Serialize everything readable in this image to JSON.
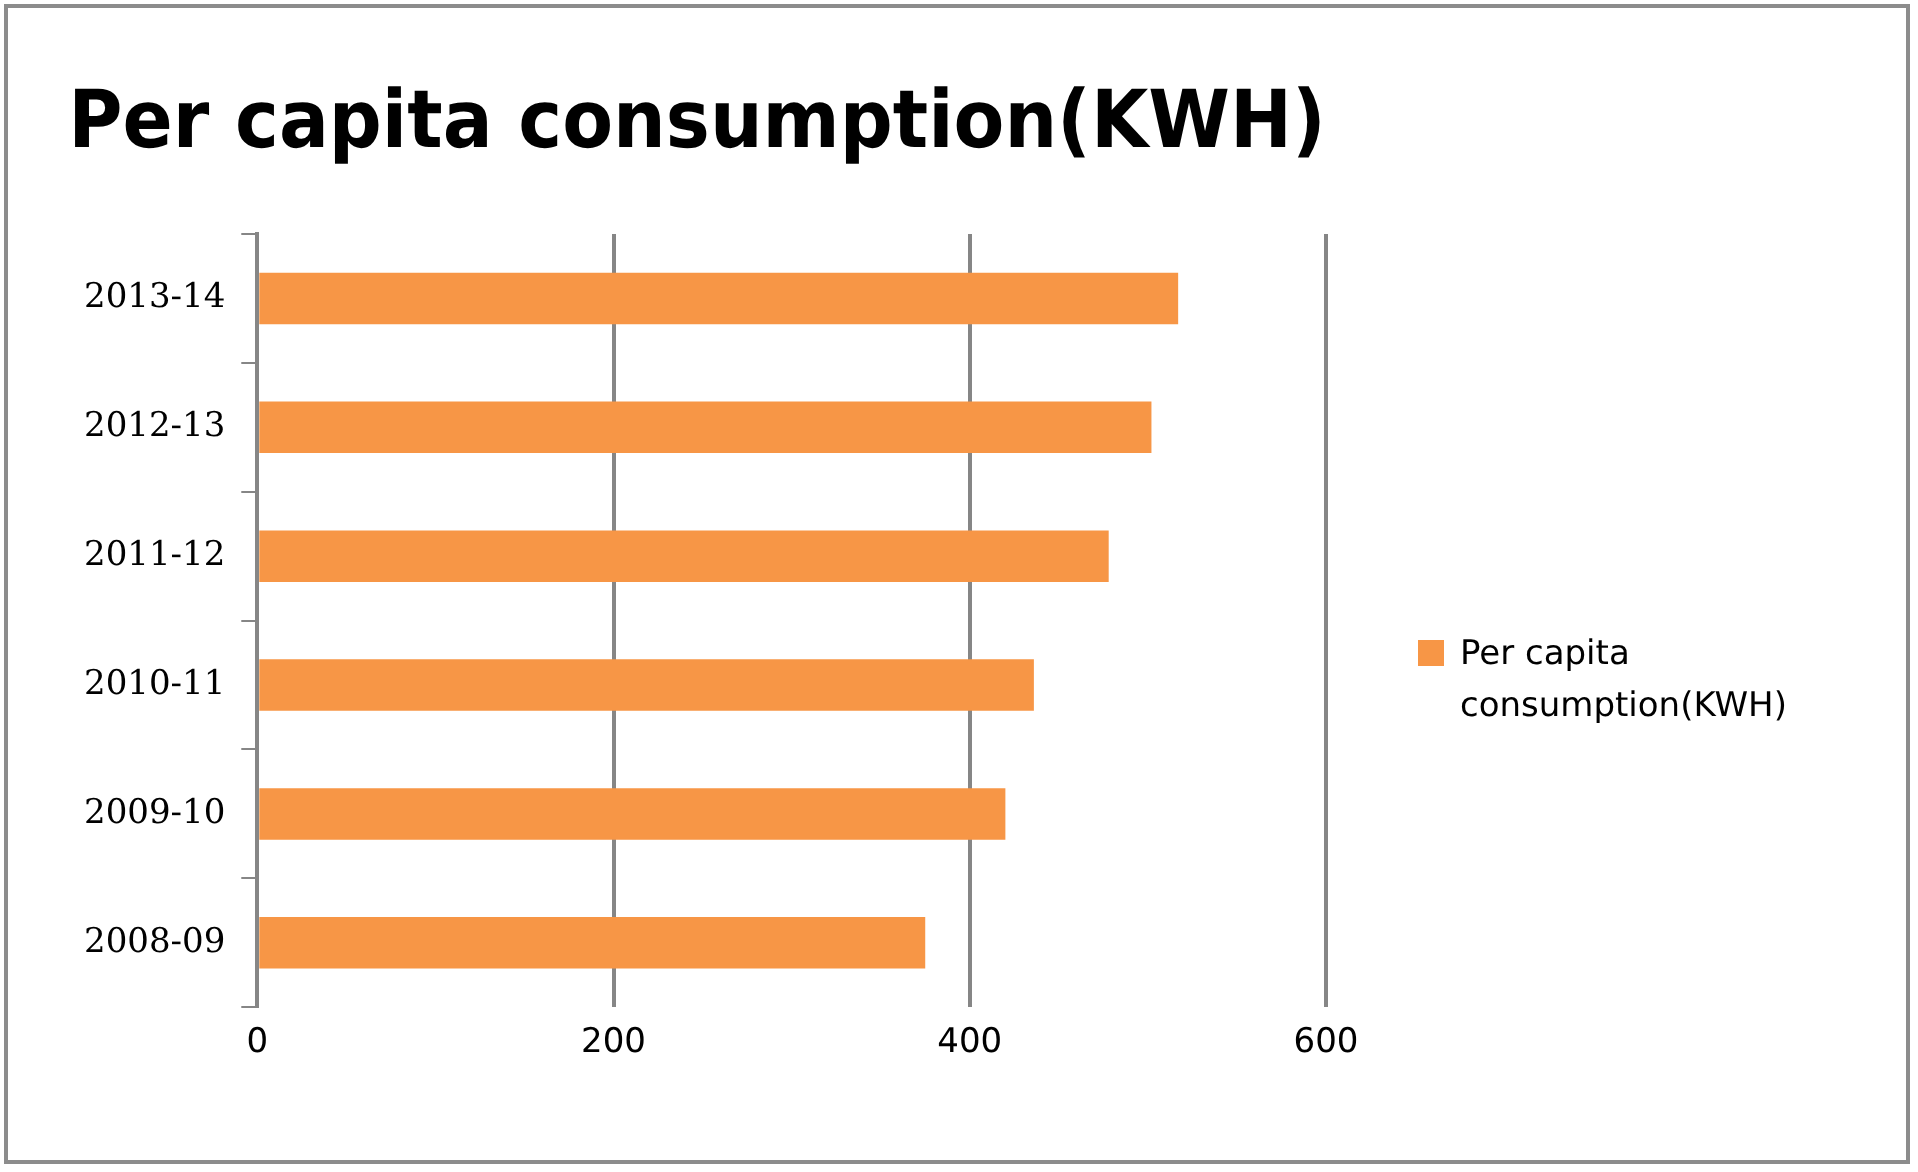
{
  "chart_data": {
    "type": "bar",
    "orientation": "horizontal",
    "title": "Per capita consumption(KWH)",
    "categories": [
      "2013-14",
      "2012-13",
      "2011-12",
      "2010-11",
      "2009-10",
      "2008-09"
    ],
    "series": [
      {
        "name": "Per capita consumption(KWH)",
        "color": "#f79646",
        "values": [
          517,
          502,
          478,
          436,
          420,
          375
        ]
      }
    ],
    "xlim": [
      0,
      600
    ],
    "xticks": [
      0,
      200,
      400,
      600
    ],
    "grid": "x",
    "legend": "right"
  }
}
